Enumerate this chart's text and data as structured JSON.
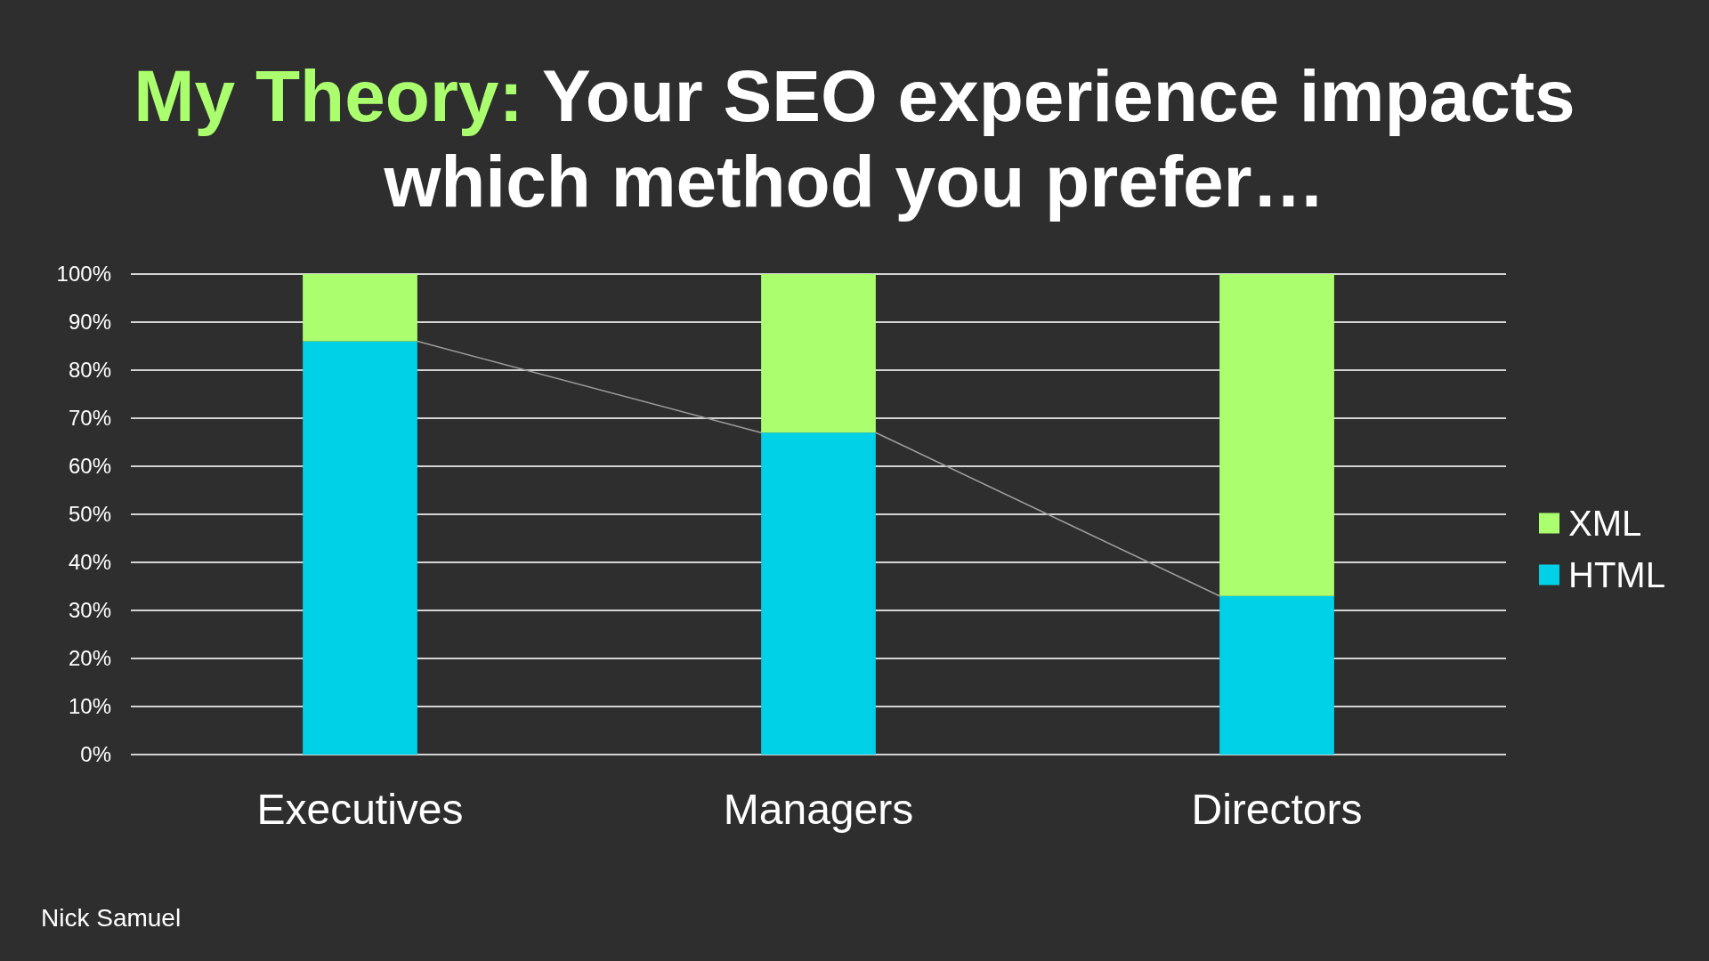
{
  "chart_data": {
    "type": "bar",
    "title": "My Theory: Your SEO experience impacts which method you prefer…",
    "categories": [
      "Executives",
      "Managers",
      "Directors"
    ],
    "series": [
      {
        "name": "HTML",
        "color": "#00d1e6",
        "values": [
          86,
          67,
          33
        ]
      },
      {
        "name": "XML",
        "color": "#abff6e",
        "values": [
          14,
          33,
          67
        ]
      }
    ],
    "stacked": true,
    "ylim": [
      0,
      100
    ],
    "yticks": [
      {
        "value": 0,
        "label": "0%"
      },
      {
        "value": 10,
        "label": "10%"
      },
      {
        "value": 20,
        "label": "20%"
      },
      {
        "value": 30,
        "label": "30%"
      },
      {
        "value": 40,
        "label": "40%"
      },
      {
        "value": 50,
        "label": "50%"
      },
      {
        "value": 60,
        "label": "60%"
      },
      {
        "value": 70,
        "label": "70%"
      },
      {
        "value": 80,
        "label": "80%"
      },
      {
        "value": 90,
        "label": "90%"
      },
      {
        "value": 100,
        "label": "100%"
      }
    ],
    "grid": "y",
    "legend": "right",
    "annotations": [
      "Nick Samuel"
    ]
  }
}
